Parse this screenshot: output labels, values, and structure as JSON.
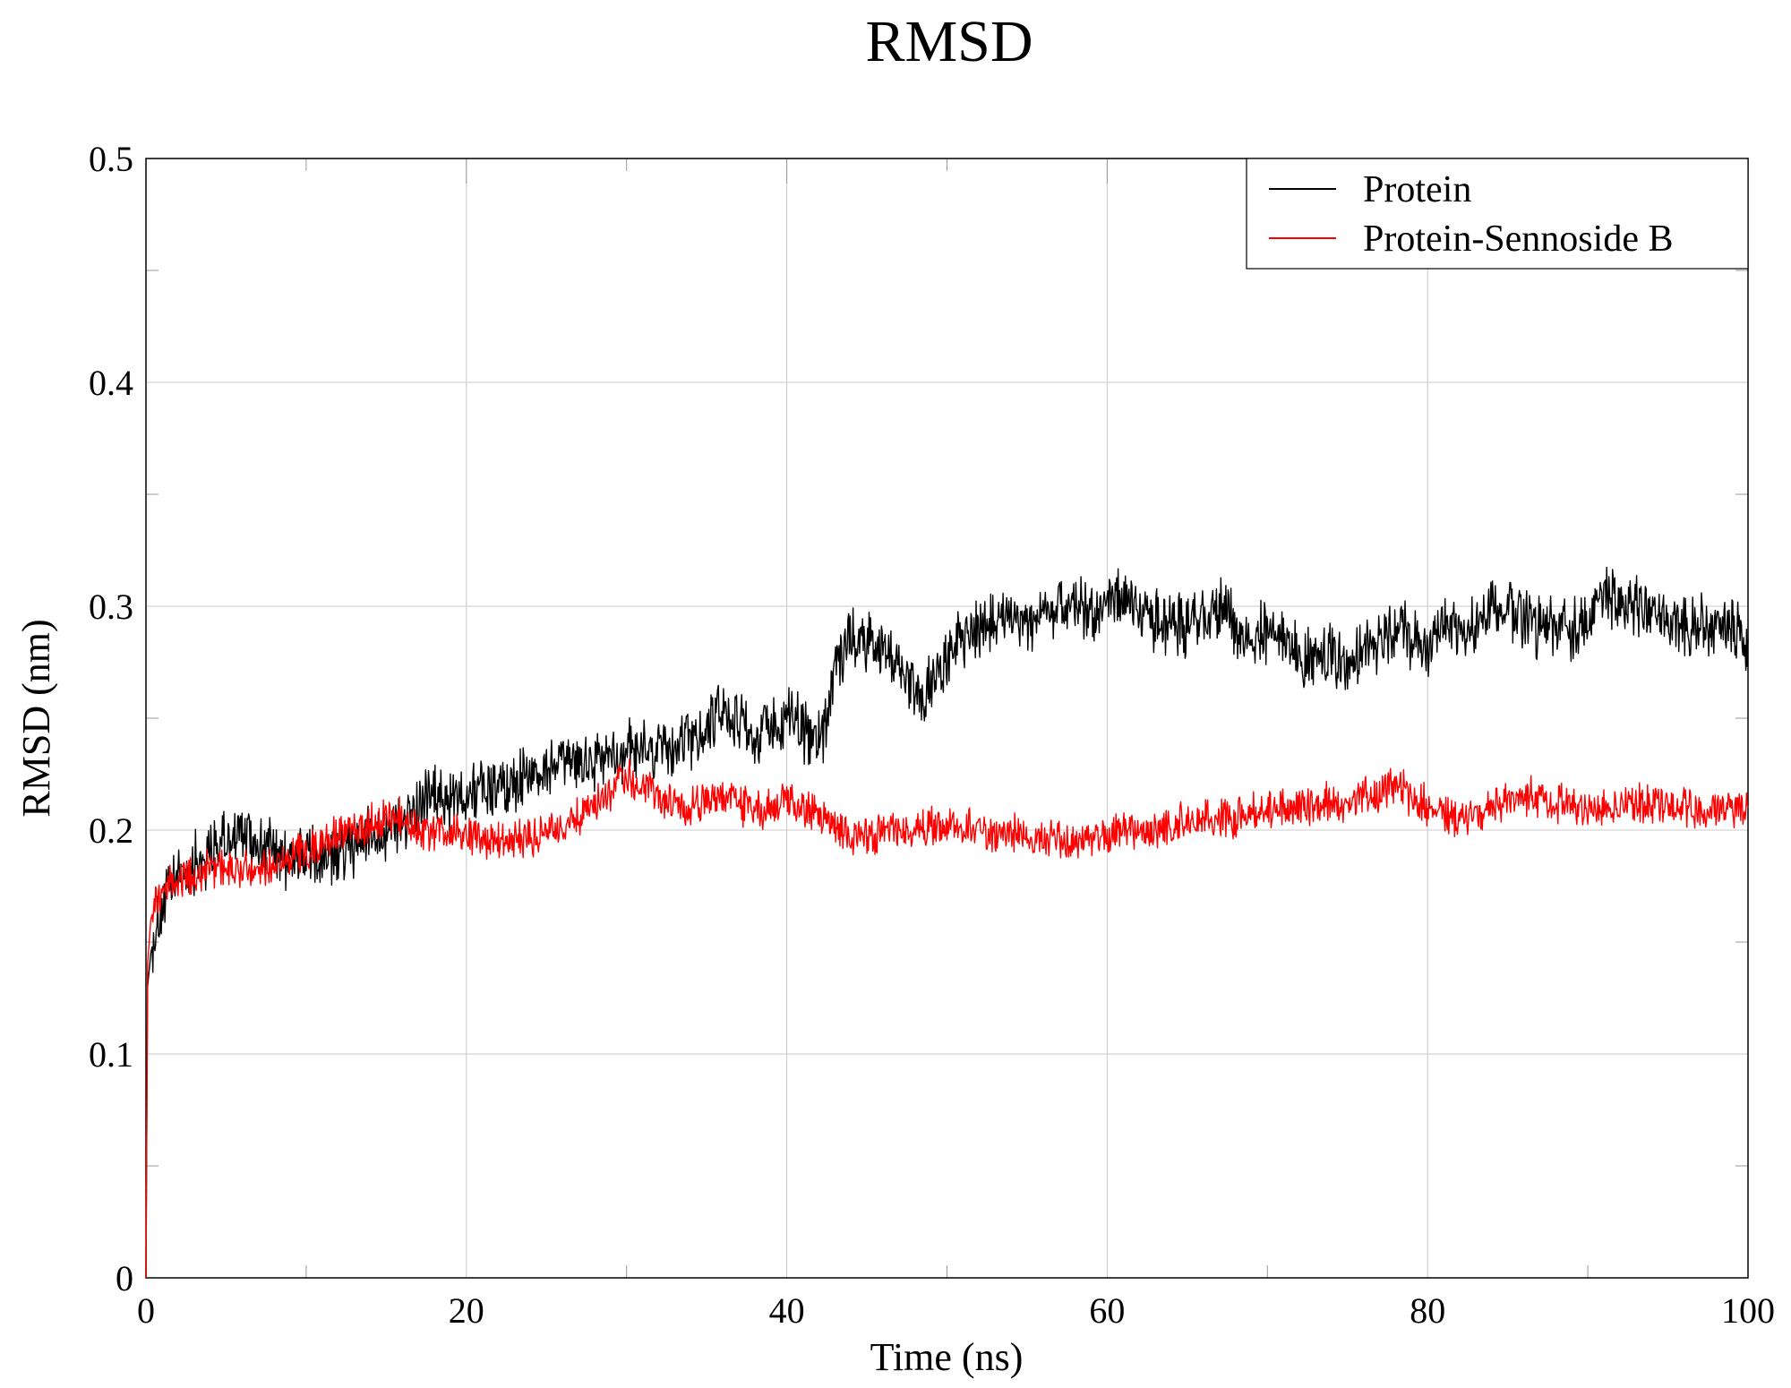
{
  "chart_data": {
    "type": "line",
    "title": "RMSD",
    "xlabel": "Time (ns)",
    "ylabel": "RMSD (nm)",
    "xlim": [
      0,
      100
    ],
    "ylim": [
      0,
      0.5
    ],
    "x_ticks": [
      0,
      20,
      40,
      60,
      80,
      100
    ],
    "x_tick_labels": [
      "0",
      "20",
      "40",
      "60",
      "80",
      "100"
    ],
    "y_ticks": [
      0,
      0.1,
      0.2,
      0.3,
      0.4,
      0.5
    ],
    "y_tick_labels": [
      "0",
      "0.1",
      "0.2",
      "0.3",
      "0.4",
      "0.5"
    ],
    "grid": true,
    "legend": {
      "position": "top-right"
    },
    "series": [
      {
        "name": "Protein",
        "color": "#000000",
        "x": [
          0,
          0.1,
          0.3,
          0.6,
          1,
          2,
          3,
          4,
          5,
          6,
          7,
          8,
          9,
          10,
          11,
          12,
          13,
          14,
          15,
          16,
          17,
          18,
          19,
          20,
          22,
          24,
          26,
          28,
          30,
          32,
          34,
          35,
          36,
          37,
          38,
          39,
          40,
          41,
          42,
          42.5,
          43,
          44,
          45,
          46,
          47,
          48,
          49,
          50,
          51,
          52,
          53,
          54,
          55,
          56,
          57,
          58,
          59,
          60,
          61,
          62,
          63,
          64,
          65,
          66,
          67,
          68,
          69,
          70,
          71,
          72,
          73,
          74,
          75,
          76,
          77,
          78,
          79,
          80,
          81,
          82,
          83,
          84,
          85,
          86,
          87,
          88,
          89,
          90,
          91,
          92,
          93,
          94,
          95,
          96,
          97,
          98,
          99,
          100
        ],
        "y": [
          0,
          0.13,
          0.145,
          0.155,
          0.165,
          0.18,
          0.185,
          0.19,
          0.195,
          0.198,
          0.195,
          0.19,
          0.188,
          0.188,
          0.186,
          0.188,
          0.192,
          0.198,
          0.2,
          0.205,
          0.21,
          0.215,
          0.212,
          0.218,
          0.22,
          0.225,
          0.228,
          0.232,
          0.235,
          0.235,
          0.238,
          0.245,
          0.255,
          0.25,
          0.24,
          0.245,
          0.25,
          0.245,
          0.238,
          0.25,
          0.275,
          0.285,
          0.285,
          0.28,
          0.27,
          0.262,
          0.265,
          0.275,
          0.285,
          0.29,
          0.295,
          0.298,
          0.292,
          0.295,
          0.298,
          0.3,
          0.295,
          0.3,
          0.305,
          0.298,
          0.295,
          0.292,
          0.29,
          0.295,
          0.3,
          0.29,
          0.285,
          0.29,
          0.285,
          0.278,
          0.275,
          0.28,
          0.272,
          0.282,
          0.285,
          0.29,
          0.285,
          0.28,
          0.29,
          0.288,
          0.292,
          0.3,
          0.3,
          0.295,
          0.29,
          0.292,
          0.29,
          0.295,
          0.305,
          0.302,
          0.3,
          0.298,
          0.295,
          0.29,
          0.292,
          0.288,
          0.29,
          0.285
        ]
      },
      {
        "name": "Protein-Sennoside B",
        "color": "#ff0000",
        "x": [
          0,
          0.1,
          0.3,
          0.6,
          1,
          2,
          3,
          4,
          5,
          6,
          7,
          8,
          9,
          10,
          11,
          12,
          13,
          14,
          15,
          16,
          17,
          18,
          19,
          20,
          22,
          24,
          26,
          28,
          30,
          32,
          34,
          35,
          36,
          37,
          38,
          39,
          40,
          41,
          42,
          43,
          44,
          45,
          46,
          48,
          50,
          52,
          54,
          56,
          58,
          60,
          62,
          64,
          66,
          68,
          70,
          72,
          74,
          76,
          78,
          80,
          82,
          84,
          86,
          88,
          90,
          92,
          94,
          96,
          98,
          100
        ],
        "y": [
          0,
          0.14,
          0.16,
          0.168,
          0.172,
          0.178,
          0.18,
          0.182,
          0.184,
          0.183,
          0.182,
          0.185,
          0.188,
          0.19,
          0.195,
          0.198,
          0.2,
          0.202,
          0.205,
          0.205,
          0.2,
          0.198,
          0.2,
          0.198,
          0.195,
          0.196,
          0.2,
          0.21,
          0.222,
          0.215,
          0.21,
          0.212,
          0.215,
          0.212,
          0.21,
          0.208,
          0.215,
          0.21,
          0.205,
          0.2,
          0.198,
          0.197,
          0.198,
          0.2,
          0.202,
          0.2,
          0.198,
          0.196,
          0.195,
          0.198,
          0.2,
          0.202,
          0.205,
          0.206,
          0.208,
          0.21,
          0.212,
          0.215,
          0.22,
          0.21,
          0.205,
          0.21,
          0.215,
          0.212,
          0.21,
          0.21,
          0.212,
          0.21,
          0.208,
          0.21
        ]
      }
    ]
  }
}
